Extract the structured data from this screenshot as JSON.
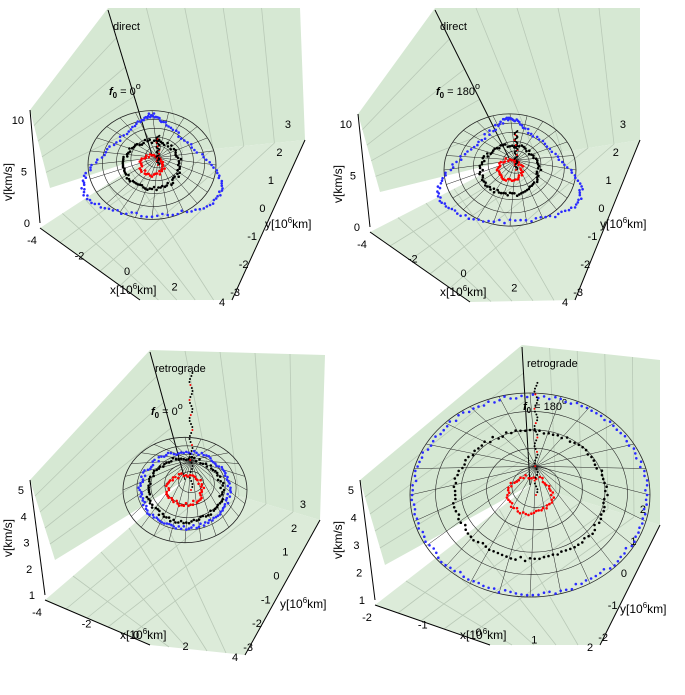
{
  "chart_data": [
    {
      "type": "scatter",
      "projection": "3d",
      "motion_label": "direct",
      "phase_label": "f",
      "phase_subscript": "0",
      "phase_value": "= 0",
      "degree_mark": "o",
      "x_axis": {
        "label": "x[10",
        "exp": "6",
        "unit": "km]",
        "ticks": [
          "-4",
          "-2",
          "0",
          "2",
          "4"
        ],
        "range": [
          -4,
          4
        ]
      },
      "y_axis": {
        "label": "y[10",
        "exp": "6",
        "unit": "km]",
        "ticks": [
          "3",
          "2",
          "1",
          "0",
          "-1",
          "-2",
          "-3"
        ],
        "range": [
          -3,
          3
        ]
      },
      "z_axis": {
        "label": "v[km/s]",
        "ticks": [
          "0",
          "5",
          "10"
        ],
        "range": [
          0,
          10
        ]
      },
      "series": [
        {
          "color": "#ff0000",
          "ring_radius": 0.45,
          "points": 40
        },
        {
          "color": "#000000",
          "ring_radius": 1.1,
          "points": 80
        },
        {
          "color": "#2a2aff",
          "ring_radius": 2.3,
          "points": 120
        }
      ],
      "grid": true
    },
    {
      "type": "scatter",
      "projection": "3d",
      "motion_label": "direct",
      "phase_label": "f",
      "phase_subscript": "0",
      "phase_value": "= 180",
      "degree_mark": "o",
      "x_axis": {
        "label": "x[10",
        "exp": "6",
        "unit": "km]",
        "ticks": [
          "-4",
          "-2",
          "0",
          "2",
          "4"
        ],
        "range": [
          -4,
          4
        ]
      },
      "y_axis": {
        "label": "y[10",
        "exp": "6",
        "unit": "km]",
        "ticks": [
          "3",
          "2",
          "1",
          "0",
          "-1",
          "-2",
          "-3"
        ],
        "range": [
          -3,
          3
        ]
      },
      "z_axis": {
        "label": "v[km/s]",
        "ticks": [
          "0",
          "5",
          "10"
        ],
        "range": [
          0,
          10
        ]
      },
      "series": [
        {
          "color": "#ff0000",
          "ring_radius": 0.45,
          "points": 40
        },
        {
          "color": "#000000",
          "ring_radius": 1.1,
          "points": 80
        },
        {
          "color": "#2a2aff",
          "ring_radius": 2.3,
          "points": 120
        }
      ],
      "grid": true
    },
    {
      "type": "scatter",
      "projection": "3d",
      "motion_label": "retrograde",
      "phase_label": "f",
      "phase_subscript": "0",
      "phase_value": "= 0",
      "degree_mark": "o",
      "x_axis": {
        "label": "x[10",
        "exp": "6",
        "unit": "km]",
        "ticks": [
          "-4",
          "-2",
          "0",
          "2",
          "4"
        ],
        "range": [
          -4,
          4
        ]
      },
      "y_axis": {
        "label": "y[10",
        "exp": "6",
        "unit": "km]",
        "ticks": [
          "3",
          "2",
          "1",
          "0",
          "-1",
          "-2",
          "-3"
        ],
        "range": [
          -3,
          3
        ]
      },
      "z_axis": {
        "label": "v[km/s]",
        "ticks": [
          "1",
          "2",
          "3",
          "4",
          "5"
        ],
        "range": [
          1,
          5
        ]
      },
      "series": [
        {
          "color": "#ff0000",
          "ring_radius": 0.7,
          "points": 50
        },
        {
          "color": "#000000",
          "ring_radius": 1.5,
          "points": 90
        },
        {
          "color": "#2a2aff",
          "ring_radius": 1.8,
          "points": 110
        }
      ],
      "grid": true
    },
    {
      "type": "scatter",
      "projection": "3d",
      "motion_label": "retrograde",
      "phase_label": "f",
      "phase_subscript": "0",
      "phase_value": "= 180",
      "degree_mark": "o",
      "x_axis": {
        "label": "x[10",
        "exp": "6",
        "unit": "km]",
        "ticks": [
          "-2",
          "-1",
          "0",
          "1",
          "2"
        ],
        "range": [
          -2,
          2
        ]
      },
      "y_axis": {
        "label": "y[10",
        "exp": "6",
        "unit": "km]",
        "ticks": [
          "2",
          "1",
          "0",
          "-1",
          "-2"
        ],
        "range": [
          -2,
          2
        ]
      },
      "z_axis": {
        "label": "v[km/s]",
        "ticks": [
          "1",
          "2",
          "3",
          "4",
          "5"
        ],
        "range": [
          1,
          5
        ]
      },
      "series": [
        {
          "color": "#ff0000",
          "ring_radius": 0.35,
          "points": 50
        },
        {
          "color": "#000000",
          "ring_radius": 1.2,
          "points": 100
        },
        {
          "color": "#2a2aff",
          "ring_radius": 1.85,
          "points": 130
        }
      ],
      "grid": true
    }
  ],
  "colors": {
    "pane": "#d6e8d3",
    "grid": "#b9c9b7"
  }
}
